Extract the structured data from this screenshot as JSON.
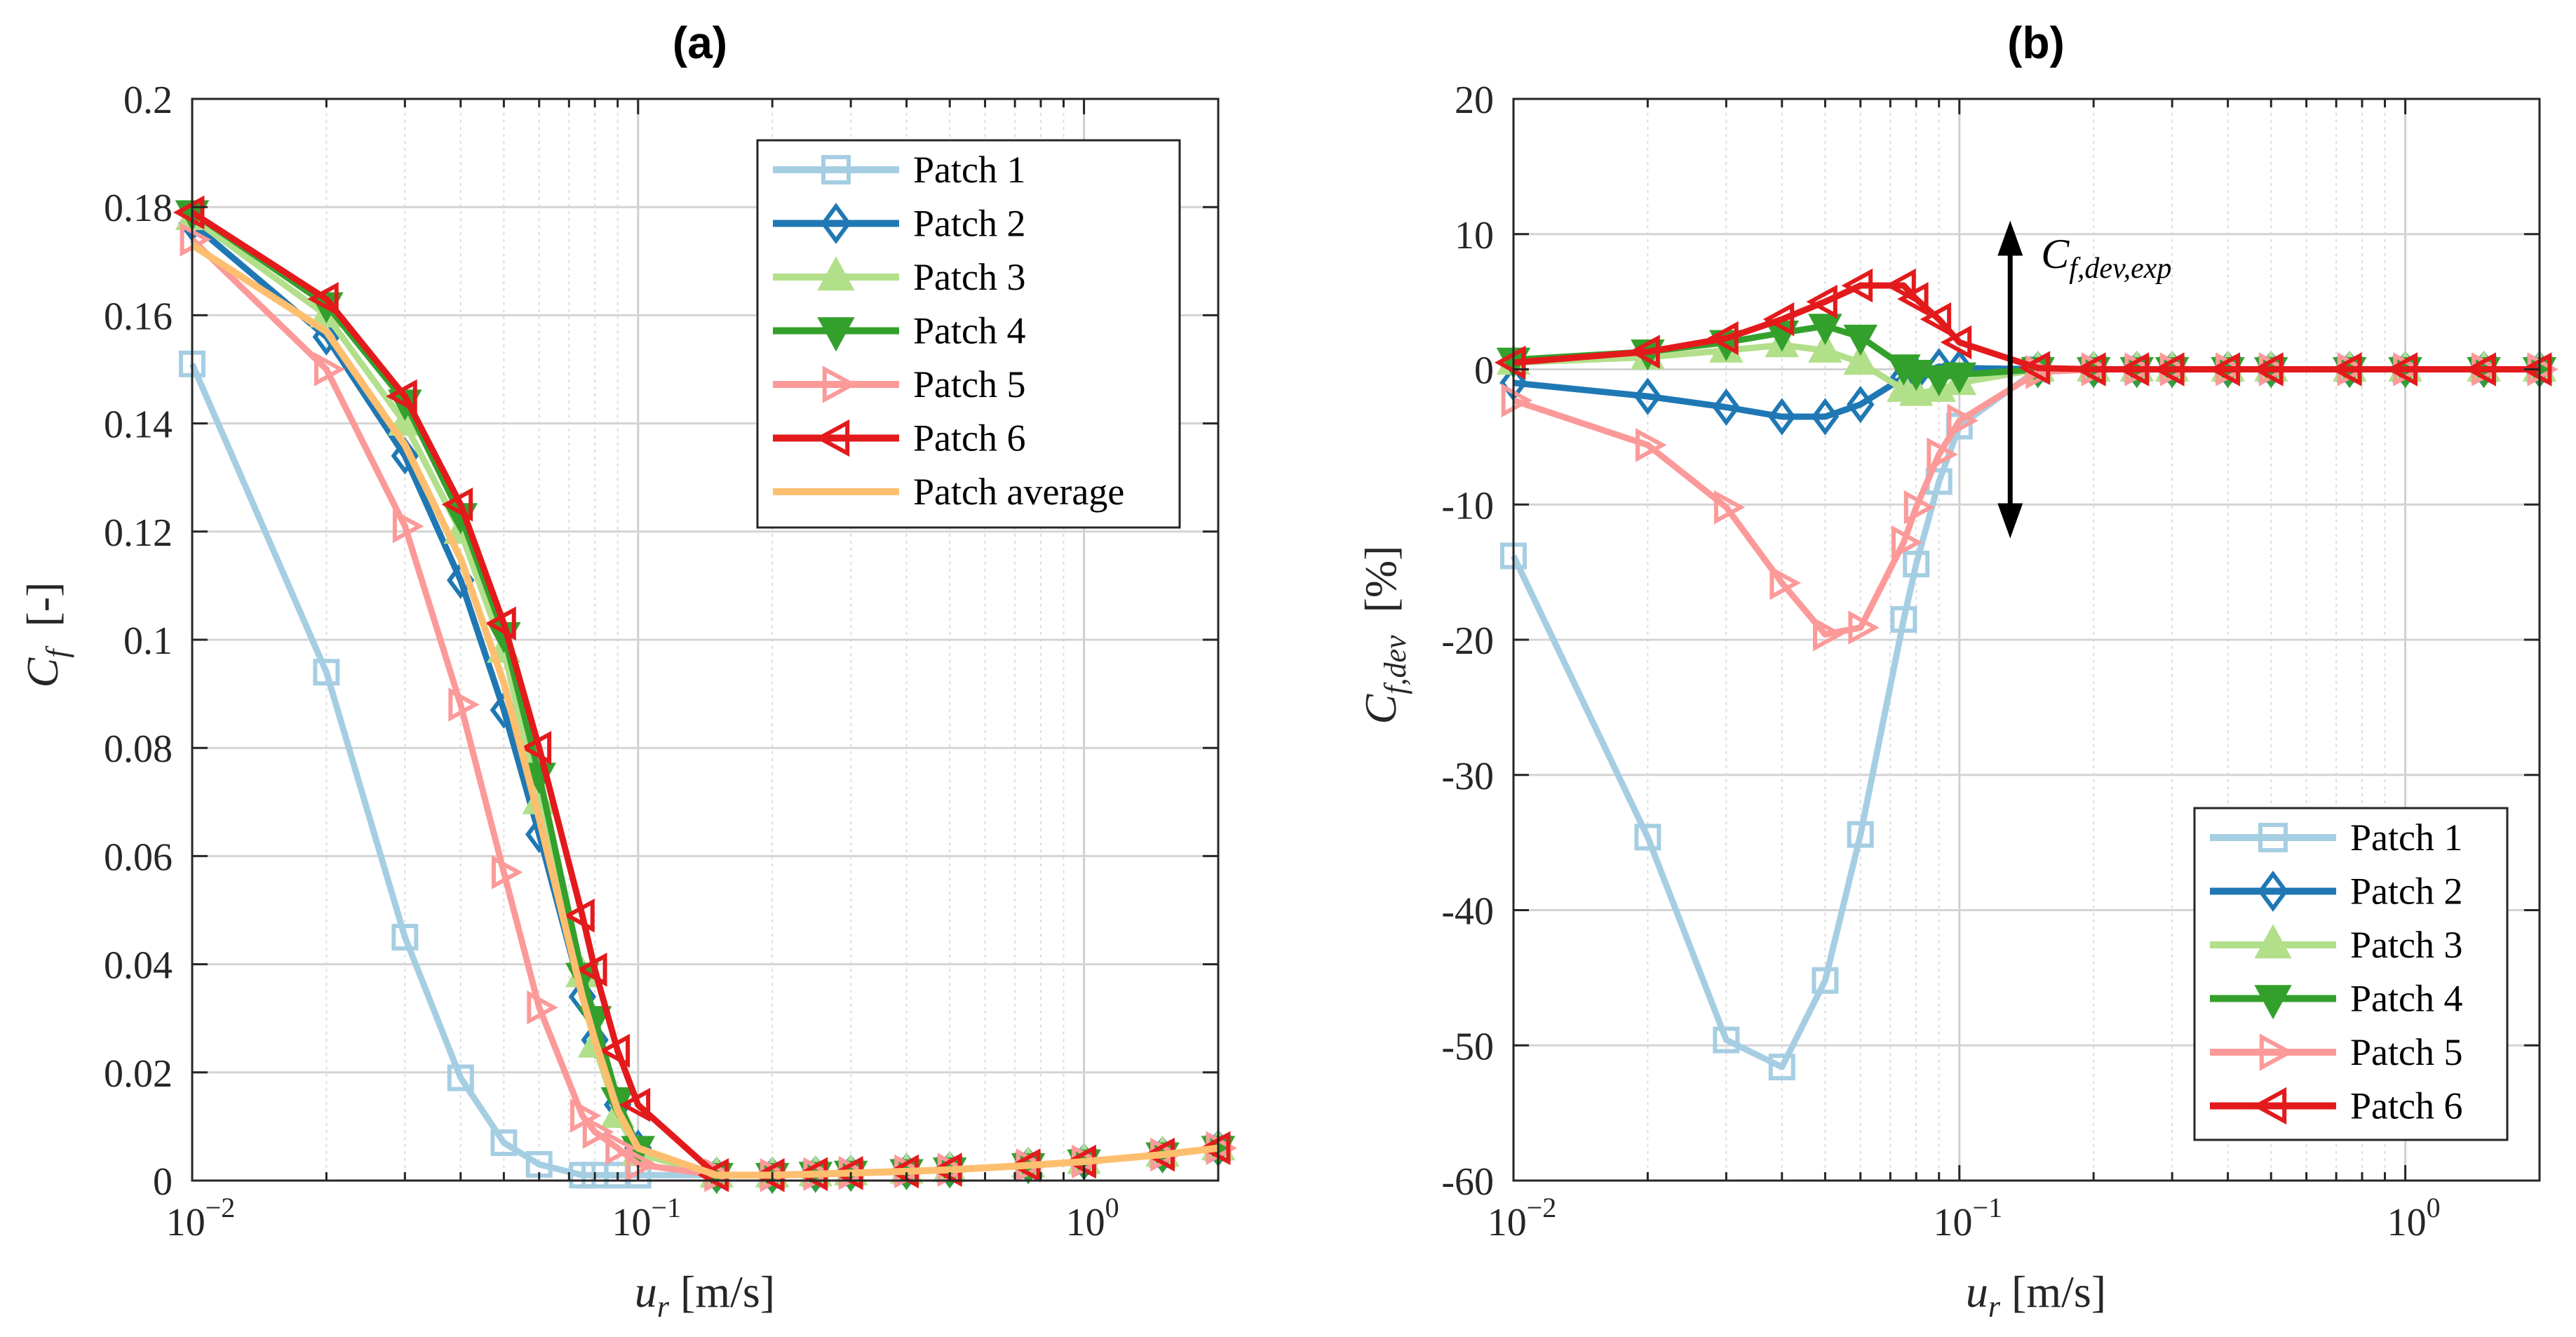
{
  "colors": {
    "patch1": "#a6cee3",
    "patch2": "#1f78b4",
    "patch3": "#b2df8a",
    "patch4": "#33a02c",
    "patch5": "#fb9a99",
    "patch6": "#e31a1c",
    "average": "#fdbf6f",
    "grid": "#d9d9d9",
    "axis": "#262626"
  },
  "chart_data": [
    {
      "type": "line",
      "panel_label": "(a)",
      "title": "(a)",
      "xlabel": "u_r [m/s]",
      "xlabel_main": "u",
      "xlabel_sub": "r",
      "xlabel_unit": " [m/s]",
      "ylabel": "C_f [-]",
      "ylabel_main": "C",
      "ylabel_sub": "f",
      "ylabel_unit": "  [-]",
      "xscale": "log",
      "xlim": [
        0.01,
        2
      ],
      "ylim": [
        0,
        0.2
      ],
      "grid": true,
      "legend_position": "top-right",
      "x_major_ticks": [
        0.01,
        0.1,
        1
      ],
      "x_tick_labels": [
        {
          "base": "10",
          "exp": "−2"
        },
        {
          "base": "10",
          "exp": "−1"
        },
        {
          "base": "10",
          "exp": "0"
        }
      ],
      "y_ticks": [
        0,
        0.02,
        0.04,
        0.06,
        0.08,
        0.1,
        0.12,
        0.14,
        0.16,
        0.18,
        0.2
      ],
      "y_tick_labels": [
        "0",
        "0.02",
        "0.04",
        "0.06",
        "0.08",
        "0.1",
        "0.12",
        "0.14",
        "0.16",
        "0.18",
        "0.2"
      ],
      "x": [
        0.01,
        0.02,
        0.03,
        0.04,
        0.05,
        0.06,
        0.075,
        0.08,
        0.09,
        0.1,
        0.15,
        0.2,
        0.25,
        0.3,
        0.4,
        0.5,
        0.75,
        1.0,
        1.5,
        2.0
      ],
      "series": [
        {
          "name": "Patch 1",
          "color_key": "patch1",
          "marker": "square",
          "values": [
            0.151,
            0.094,
            0.045,
            0.019,
            0.007,
            0.003,
            0.001,
            0.001,
            0.001,
            0.001,
            0.001,
            0.001,
            0.0012,
            0.0014,
            0.0017,
            0.002,
            0.0028,
            0.0035,
            0.0048,
            0.006
          ]
        },
        {
          "name": "Patch 2",
          "color_key": "patch2",
          "marker": "diamond",
          "values": [
            0.177,
            0.156,
            0.134,
            0.111,
            0.087,
            0.064,
            0.034,
            0.026,
            0.014,
            0.006,
            0.001,
            0.001,
            0.0012,
            0.0014,
            0.0017,
            0.002,
            0.0028,
            0.0035,
            0.0048,
            0.006
          ]
        },
        {
          "name": "Patch 3",
          "color_key": "patch3",
          "marker": "triangle-up",
          "values": [
            0.178,
            0.16,
            0.14,
            0.12,
            0.098,
            0.07,
            0.038,
            0.025,
            0.012,
            0.005,
            0.001,
            0.001,
            0.0012,
            0.0014,
            0.0017,
            0.002,
            0.0028,
            0.0035,
            0.0048,
            0.006
          ]
        },
        {
          "name": "Patch 4",
          "color_key": "patch4",
          "marker": "triangle-down",
          "values": [
            0.179,
            0.162,
            0.144,
            0.123,
            0.101,
            0.075,
            0.038,
            0.03,
            0.015,
            0.006,
            0.001,
            0.001,
            0.0012,
            0.0014,
            0.0017,
            0.002,
            0.0028,
            0.0035,
            0.0048,
            0.006
          ]
        },
        {
          "name": "Patch 5",
          "color_key": "patch5",
          "marker": "triangle-right",
          "values": [
            0.174,
            0.15,
            0.121,
            0.088,
            0.057,
            0.032,
            0.012,
            0.009,
            0.006,
            0.003,
            0.001,
            0.001,
            0.0012,
            0.0014,
            0.0017,
            0.002,
            0.0028,
            0.0035,
            0.0048,
            0.006
          ]
        },
        {
          "name": "Patch 6",
          "color_key": "patch6",
          "marker": "triangle-left",
          "values": [
            0.179,
            0.163,
            0.145,
            0.125,
            0.103,
            0.08,
            0.049,
            0.039,
            0.024,
            0.014,
            0.001,
            0.001,
            0.0012,
            0.0014,
            0.0017,
            0.002,
            0.0028,
            0.0035,
            0.0048,
            0.006
          ]
        },
        {
          "name": "Patch average",
          "color_key": "average",
          "marker": "none",
          "values": [
            0.173,
            0.157,
            0.136,
            0.115,
            0.092,
            0.067,
            0.034,
            0.026,
            0.013,
            0.006,
            0.001,
            0.001,
            0.0012,
            0.0014,
            0.0017,
            0.002,
            0.0028,
            0.0035,
            0.0048,
            0.006
          ]
        }
      ],
      "legend": [
        "Patch 1",
        "Patch 2",
        "Patch 3",
        "Patch 4",
        "Patch 5",
        "Patch 6",
        "Patch average"
      ]
    },
    {
      "type": "line",
      "panel_label": "(b)",
      "title": "(b)",
      "xlabel": "u_r [m/s]",
      "xlabel_main": "u",
      "xlabel_sub": "r",
      "xlabel_unit": " [m/s]",
      "ylabel": "C_f,dev [%]",
      "ylabel_main": "C",
      "ylabel_sub": "f,dev",
      "ylabel_unit": "  [%]",
      "xscale": "log",
      "xlim": [
        0.01,
        2
      ],
      "ylim": [
        -60,
        20
      ],
      "grid": true,
      "legend_position": "bottom-right",
      "x_major_ticks": [
        0.01,
        0.1,
        1
      ],
      "x_tick_labels": [
        {
          "base": "10",
          "exp": "−2"
        },
        {
          "base": "10",
          "exp": "−1"
        },
        {
          "base": "10",
          "exp": "0"
        }
      ],
      "y_ticks": [
        -60,
        -50,
        -40,
        -30,
        -20,
        -10,
        0,
        10,
        20
      ],
      "y_tick_labels": [
        "-60",
        "-50",
        "-40",
        "-30",
        "-20",
        "-10",
        "0",
        "10",
        "20"
      ],
      "annotation": {
        "label_main": "C",
        "label_sub": "f,dev,exp",
        "label": "C_f,dev,exp",
        "x": 0.13,
        "y_from": -12.5,
        "y_to": 11
      },
      "x": [
        0.01,
        0.02,
        0.03,
        0.04,
        0.05,
        0.06,
        0.075,
        0.08,
        0.09,
        0.1,
        0.15,
        0.2,
        0.25,
        0.3,
        0.4,
        0.5,
        0.75,
        1.0,
        1.5,
        2.0
      ],
      "series": [
        {
          "name": "Patch 1",
          "color_key": "patch1",
          "marker": "square",
          "values": [
            -13.8,
            -34.6,
            -49.6,
            -51.6,
            -45.2,
            -34.4,
            -18.5,
            -14.4,
            -8.3,
            -4.2,
            0,
            0,
            0,
            0,
            0,
            0,
            0,
            0,
            0,
            0
          ]
        },
        {
          "name": "Patch 2",
          "color_key": "patch2",
          "marker": "diamond",
          "values": [
            -1.0,
            -2.0,
            -2.8,
            -3.5,
            -3.5,
            -2.6,
            -0.6,
            -0.4,
            0.2,
            0.1,
            0,
            0,
            0,
            0,
            0,
            0,
            0,
            0,
            0,
            0
          ]
        },
        {
          "name": "Patch 3",
          "color_key": "patch3",
          "marker": "triangle-up",
          "values": [
            0.5,
            0.9,
            1.4,
            1.8,
            1.4,
            0.5,
            -1.5,
            -1.8,
            -1.5,
            -1.0,
            0,
            0,
            0,
            0,
            0,
            0,
            0,
            0,
            0,
            0
          ]
        },
        {
          "name": "Patch 4",
          "color_key": "patch4",
          "marker": "triangle-down",
          "values": [
            0.7,
            1.3,
            2.0,
            2.7,
            3.2,
            2.4,
            0.2,
            -0.2,
            -0.6,
            -0.4,
            0,
            0,
            0,
            0,
            0,
            0,
            0,
            0,
            0,
            0
          ]
        },
        {
          "name": "Patch 5",
          "color_key": "patch5",
          "marker": "triangle-right",
          "values": [
            -2.3,
            -5.6,
            -10.2,
            -15.8,
            -19.6,
            -19.1,
            -12.8,
            -10.2,
            -6.3,
            -3.8,
            -0.2,
            0,
            0,
            0,
            0,
            0,
            0,
            0,
            0,
            0
          ]
        },
        {
          "name": "Patch 6",
          "color_key": "patch6",
          "marker": "triangle-left",
          "values": [
            0.5,
            1.3,
            2.3,
            3.7,
            5.0,
            6.2,
            6.2,
            5.2,
            3.7,
            2.0,
            0.1,
            0,
            0,
            0,
            0,
            0,
            0,
            0,
            0,
            0
          ]
        }
      ],
      "legend": [
        "Patch 1",
        "Patch 2",
        "Patch 3",
        "Patch 4",
        "Patch 5",
        "Patch 6"
      ]
    }
  ]
}
